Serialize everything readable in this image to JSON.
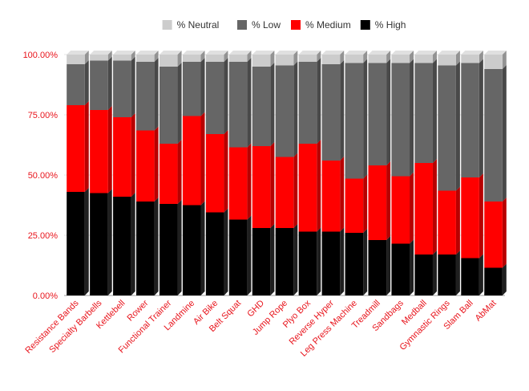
{
  "chart_data": {
    "type": "bar",
    "stacked": true,
    "title": "",
    "xlabel": "",
    "ylabel": "",
    "ylim": [
      0,
      100
    ],
    "yticks": [
      "0.00%",
      "25.00%",
      "50.00%",
      "75.00%",
      "100.00%"
    ],
    "legend_position": "top",
    "legend": [
      "% Neutral",
      "% Low",
      "% Medium",
      "% High"
    ],
    "categories": [
      "Resistance Bands",
      "Specialty Barbells",
      "Kettlebell",
      "Rower",
      "Functional Trainer",
      "Landmine",
      "Air Bike",
      "Belt Squat",
      "GHD",
      "Jump Rope",
      "Plyo Box",
      "Reverse Hyper",
      "Leg Press Machine",
      "Treadmill",
      "Sandbags",
      "Medball",
      "Gymnastic Rings",
      "Slam Ball",
      "AbMat"
    ],
    "series": [
      {
        "name": "% High",
        "color": "#000000",
        "values": [
          43,
          42.5,
          41,
          39,
          38,
          37.5,
          34.5,
          31.5,
          28,
          28,
          26.5,
          26.5,
          26,
          23,
          21.5,
          17,
          17,
          15.5,
          11.5
        ]
      },
      {
        "name": "% Medium",
        "color": "#ff0000",
        "values": [
          36,
          34.5,
          33,
          29.5,
          25,
          37,
          32.5,
          30,
          34,
          29.5,
          36.5,
          29.5,
          22.5,
          31,
          28,
          38,
          26.5,
          33.5,
          27.5
        ]
      },
      {
        "name": "% Low",
        "color": "#666666",
        "values": [
          17,
          20.5,
          23.5,
          28.5,
          32,
          22.5,
          30,
          35.5,
          33,
          38,
          34,
          40,
          48,
          42.5,
          47,
          41.5,
          52,
          47.5,
          55
        ]
      },
      {
        "name": "% Neutral",
        "color": "#cccccc",
        "values": [
          4,
          2.5,
          2.5,
          3,
          5,
          3,
          3,
          3,
          5,
          4.5,
          3,
          4,
          3.5,
          3.5,
          3.5,
          3.5,
          4.5,
          3.5,
          6
        ]
      }
    ]
  }
}
